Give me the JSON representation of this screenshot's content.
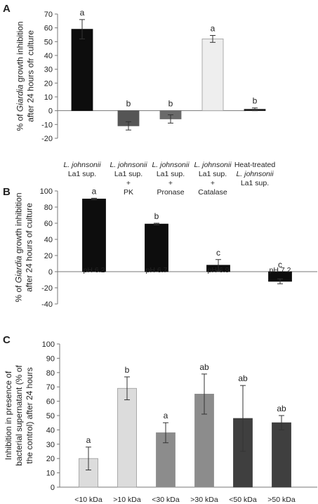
{
  "chart_data": [
    {
      "type": "bar",
      "panel_label": "A",
      "ylabel_lines": [
        "% of Giardia growth inhibition",
        "after 24 hours ofr culture"
      ],
      "ylim": [
        -20,
        70
      ],
      "yticks": [
        -20,
        -10,
        0,
        10,
        20,
        30,
        40,
        50,
        60,
        70
      ],
      "categories": [
        [
          "L. johnsonii",
          "La1 sup."
        ],
        [
          "L. johnsonii",
          "La1 sup.",
          "+",
          "PK"
        ],
        [
          "L. johnsonii",
          "La1 sup.",
          "+",
          "Pronase"
        ],
        [
          "L. johnsonii",
          "La1 sup.",
          "+",
          "Catalase"
        ],
        [
          "Heat-treated",
          "L. johnsonii",
          "La1 sup."
        ]
      ],
      "values": [
        59,
        -11,
        -6,
        52,
        1
      ],
      "errors": [
        7,
        3,
        3,
        2.5,
        1
      ],
      "significance": [
        "a",
        "b",
        "b",
        "a",
        "b"
      ],
      "bar_colors": [
        "#0d0d0d",
        "#555555",
        "#6a6a6a",
        "#eeeeee",
        "#1a1a1a"
      ],
      "grid": false
    },
    {
      "type": "bar",
      "panel_label": "B",
      "ylabel_lines": [
        "% of Giardia growth inhibition",
        "after 24 hours of culture"
      ],
      "ylim": [
        -40,
        100
      ],
      "yticks": [
        -40,
        -20,
        0,
        20,
        40,
        60,
        80,
        100
      ],
      "categories": [
        "pH 6.2",
        "pH 6.7",
        "pH 6.9",
        "pH 7.2"
      ],
      "values": [
        90,
        59,
        8,
        -12
      ],
      "errors": [
        1,
        1,
        7,
        3
      ],
      "significance": [
        "a",
        "b",
        "c",
        "c"
      ],
      "bar_colors": [
        "#0d0d0d",
        "#0d0d0d",
        "#0d0d0d",
        "#0d0d0d"
      ],
      "grid": false
    },
    {
      "type": "bar",
      "panel_label": "C",
      "ylabel_lines": [
        "Inhibition in presence of",
        "bacterial supernatant (% of",
        "the control) after 24 hours"
      ],
      "ylim": [
        0,
        100
      ],
      "yticks": [
        0,
        10,
        20,
        30,
        40,
        50,
        60,
        70,
        80,
        90,
        100
      ],
      "categories": [
        "<10 kDa",
        ">10 kDa",
        "<30 kDa",
        ">30 kDa",
        "<50 kDa",
        ">50 kDa"
      ],
      "values": [
        20,
        69,
        38,
        65,
        48,
        45
      ],
      "errors": [
        8,
        8,
        7,
        14,
        23,
        5
      ],
      "significance": [
        "a",
        "b",
        "a",
        "ab",
        "ab",
        "ab"
      ],
      "bar_colors": [
        "#dcdcdc",
        "#dcdcdc",
        "#8c8c8c",
        "#8c8c8c",
        "#3f3f3f",
        "#3f3f3f"
      ],
      "grid": false
    }
  ]
}
